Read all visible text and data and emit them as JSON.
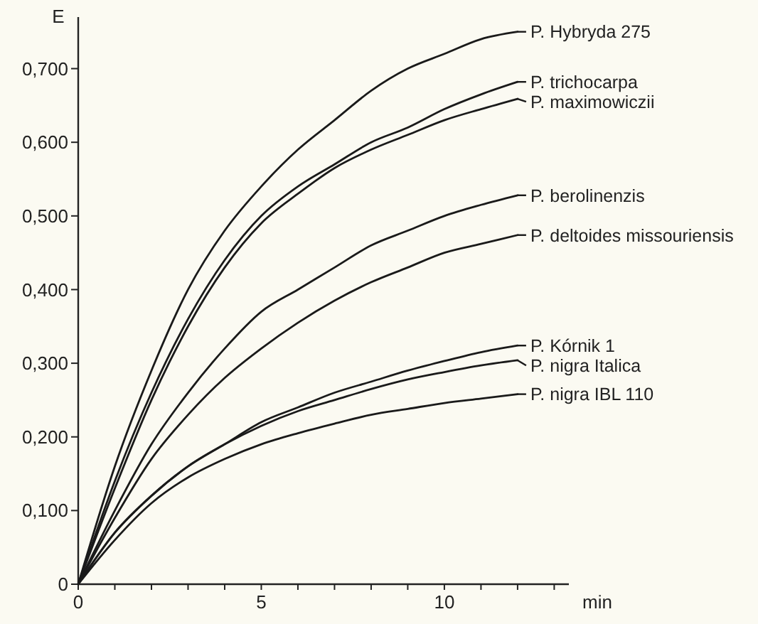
{
  "chart_data": {
    "type": "line",
    "xlabel": "min",
    "ylabel": "E",
    "x": [
      0,
      1,
      2,
      3,
      4,
      5,
      6,
      7,
      8,
      9,
      10,
      11,
      12
    ],
    "series": [
      {
        "name": "P. Hybryda 275",
        "color": "#1a1a1a",
        "values": [
          0,
          0.16,
          0.29,
          0.4,
          0.48,
          0.54,
          0.59,
          0.63,
          0.67,
          0.7,
          0.72,
          0.74,
          0.75
        ]
      },
      {
        "name": "P. trichocarpa",
        "color": "#1a1a1a",
        "values": [
          0,
          0.14,
          0.26,
          0.36,
          0.44,
          0.5,
          0.54,
          0.57,
          0.6,
          0.62,
          0.645,
          0.665,
          0.682
        ]
      },
      {
        "name": "P. maximowiczii",
        "color": "#1a1a1a",
        "values": [
          0,
          0.13,
          0.25,
          0.35,
          0.43,
          0.49,
          0.53,
          0.565,
          0.59,
          0.61,
          0.63,
          0.645,
          0.659
        ]
      },
      {
        "name": "P. berolinenzis",
        "color": "#1a1a1a",
        "values": [
          0,
          0.1,
          0.19,
          0.26,
          0.32,
          0.37,
          0.4,
          0.43,
          0.46,
          0.48,
          0.5,
          0.515,
          0.528
        ]
      },
      {
        "name": "P. deltoides missouriensis",
        "color": "#1a1a1a",
        "values": [
          0,
          0.09,
          0.17,
          0.23,
          0.28,
          0.32,
          0.355,
          0.385,
          0.41,
          0.43,
          0.45,
          0.462,
          0.474
        ]
      },
      {
        "name": "P. Kórnik 1",
        "color": "#1a1a1a",
        "values": [
          0,
          0.07,
          0.12,
          0.16,
          0.19,
          0.22,
          0.24,
          0.26,
          0.275,
          0.29,
          0.303,
          0.315,
          0.324
        ]
      },
      {
        "name": "P. nigra Italica",
        "color": "#1a1a1a",
        "values": [
          0,
          0.07,
          0.12,
          0.16,
          0.19,
          0.215,
          0.235,
          0.25,
          0.265,
          0.278,
          0.288,
          0.297,
          0.304
        ]
      },
      {
        "name": "P. nigra IBL 110",
        "color": "#1a1a1a",
        "values": [
          0,
          0.06,
          0.11,
          0.145,
          0.17,
          0.19,
          0.205,
          0.218,
          0.23,
          0.238,
          0.246,
          0.252,
          0.258
        ]
      }
    ],
    "xlim": [
      0,
      13.4
    ],
    "xticks": [
      0,
      {
        "value": 1,
        "label": null
      },
      {
        "value": 2,
        "label": null
      },
      {
        "value": 3,
        "label": null
      },
      {
        "value": 4,
        "label": null
      },
      5,
      {
        "value": 6,
        "label": null
      },
      {
        "value": 7,
        "label": null
      },
      {
        "value": 8,
        "label": null
      },
      {
        "value": 9,
        "label": null
      },
      10,
      {
        "value": 11,
        "label": null
      },
      {
        "value": 12,
        "label": null
      },
      {
        "value": 13,
        "label": null
      }
    ],
    "ylim": [
      0,
      0.77
    ],
    "yticks": [
      0,
      {
        "value": 0.1,
        "label": "0,100"
      },
      {
        "value": 0.2,
        "label": "0,200"
      },
      {
        "value": 0.3,
        "label": "0,300"
      },
      {
        "value": 0.4,
        "label": "0,400"
      },
      {
        "value": 0.5,
        "label": "0,500"
      },
      {
        "value": 0.6,
        "label": "0,600"
      },
      {
        "value": 0.7,
        "label": "0,700"
      }
    ],
    "grid": false,
    "legend": "right",
    "marker": "none",
    "line_style": "solid"
  }
}
